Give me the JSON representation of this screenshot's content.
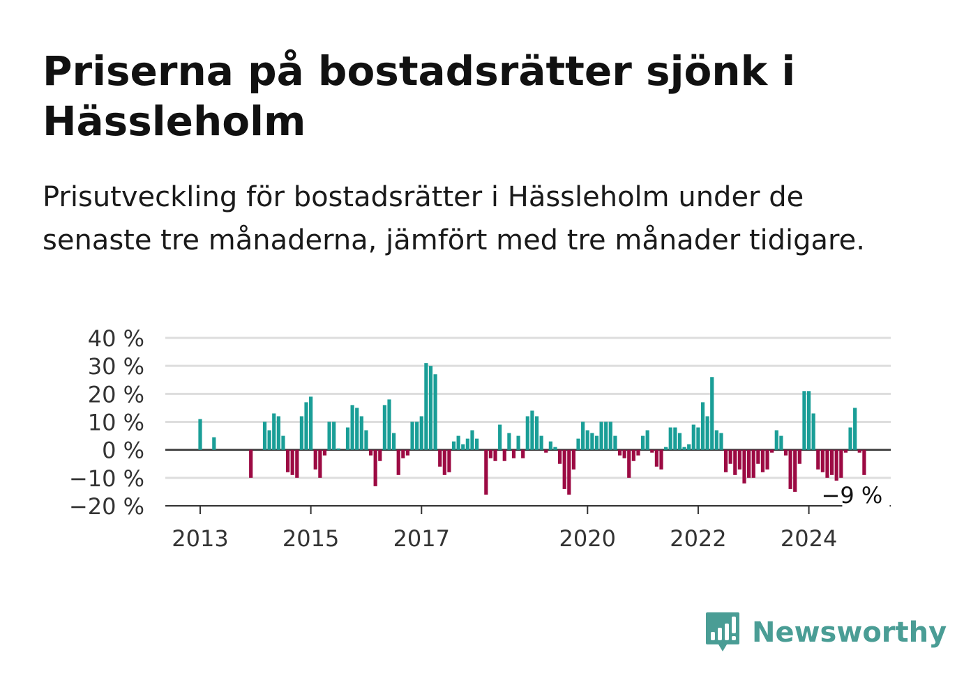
{
  "title": "Priserna på bostadsrätter sjönk i Hässleholm",
  "subtitle": "Prisutveckling för bostadsrätter i Hässleholm under de senaste tre månaderna, jämfört med tre månader tidigare.",
  "brand": {
    "name": "Newsworthy",
    "icon": "newsworthy-logo-icon",
    "color": "#4a9d95"
  },
  "chart_data": {
    "type": "bar",
    "title": "",
    "xlabel": "",
    "ylabel": "",
    "ylim": [
      -20,
      40
    ],
    "yticks": [
      40,
      30,
      20,
      10,
      0,
      -10,
      -20
    ],
    "ytick_labels": [
      "40 %",
      "30 %",
      "20 %",
      "10 %",
      "0 %",
      "−10 %",
      "−20 %"
    ],
    "xticks": [
      {
        "label": "2013",
        "x": 2013.0
      },
      {
        "label": "2015",
        "x": 2015.0
      },
      {
        "label": "2017",
        "x": 2017.0
      },
      {
        "label": "2020",
        "x": 2020.0
      },
      {
        "label": "2022",
        "x": 2022.0
      },
      {
        "label": "2024",
        "x": 2024.0
      }
    ],
    "xlim": [
      2012.37,
      2025.48
    ],
    "grid": true,
    "colors": {
      "positive": "#1a9e97",
      "negative": "#9c0a43",
      "grid": "#dddddd",
      "zero": "#444444"
    },
    "annotation": {
      "label": "−9 %",
      "x": 2024.83,
      "value": -9
    },
    "series": [
      {
        "x_start": 2013.0,
        "x_step": 0.08333,
        "values": [
          11,
          0,
          0,
          4.5,
          0,
          0,
          0,
          0,
          0,
          0,
          0,
          -10,
          0,
          0,
          10,
          7,
          13,
          12,
          5,
          -8,
          -9,
          -10,
          12,
          17,
          19,
          -7,
          -10,
          -2,
          10,
          10,
          0.5,
          0,
          8,
          16,
          15,
          12,
          7,
          -2,
          -13,
          -4,
          16,
          18,
          6,
          -9,
          -3,
          -2,
          10,
          10,
          12,
          31,
          30,
          27,
          -6,
          -9,
          -8,
          3,
          5,
          2,
          4,
          7,
          4,
          0,
          -16,
          -3,
          -4,
          9,
          -4,
          6,
          -3,
          5,
          -3,
          12,
          14,
          12,
          5,
          -1,
          3,
          1,
          -5,
          -14,
          -16,
          -7,
          4,
          10,
          7,
          6,
          5,
          10,
          10,
          10,
          5,
          -2,
          -3,
          -10,
          -4,
          -2,
          5,
          7,
          -1,
          -6,
          -7,
          1,
          8,
          8,
          6,
          1,
          2,
          9,
          8,
          17,
          12,
          26,
          7,
          6,
          -8,
          -5,
          -9,
          -7,
          -12,
          -10,
          -10,
          -5,
          -8,
          -7,
          -1,
          7,
          5,
          -2,
          -14,
          -15,
          -5,
          21,
          21,
          13,
          -7,
          -8,
          -10,
          -9,
          -11,
          -10,
          -1,
          8,
          15,
          -1,
          -9
        ]
      }
    ]
  }
}
